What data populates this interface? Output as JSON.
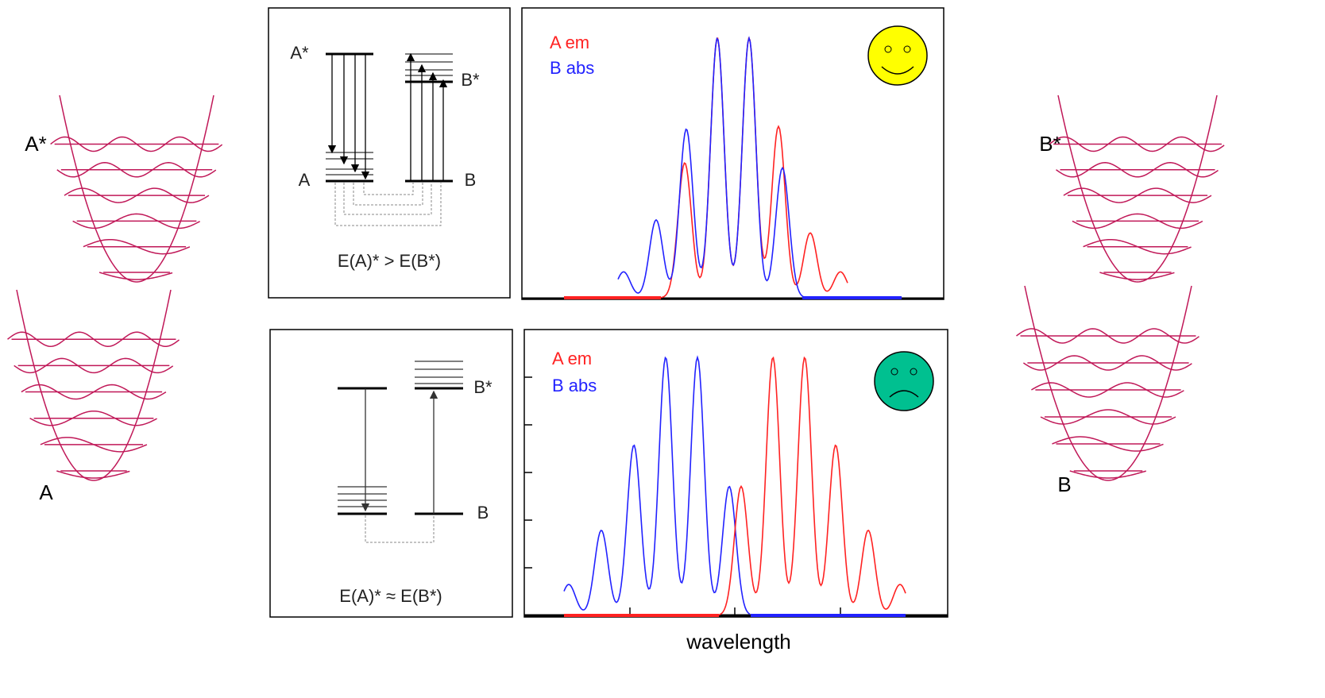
{
  "left_wells": {
    "upper_label": "A*",
    "lower_label": "A"
  },
  "right_wells": {
    "upper_label": "B*",
    "lower_label": "B"
  },
  "top_panel": {
    "level_labels": {
      "a_star": "A*",
      "b_star": "B*",
      "a": "A",
      "b": "B"
    },
    "condition": "E(A)* > E(B*)",
    "legend": [
      "A em",
      "B abs"
    ]
  },
  "bottom_panel": {
    "level_labels": {
      "b_star": "B*",
      "b": "B"
    },
    "condition": "E(A)* ≈ E(B*)",
    "legend": [
      "A em",
      "B abs"
    ]
  },
  "x_axis_label": "wavelength"
}
